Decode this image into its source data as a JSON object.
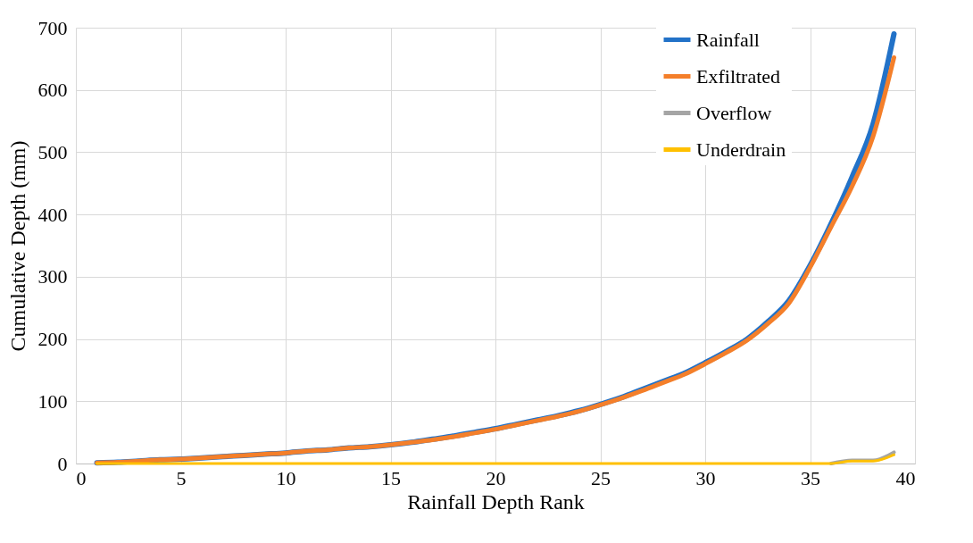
{
  "chart_data": {
    "type": "line",
    "xlabel": "Rainfall Depth Rank",
    "ylabel": "Cumulative Depth (mm)",
    "x": [
      1,
      2,
      3,
      4,
      5,
      6,
      7,
      8,
      9,
      10,
      11,
      12,
      13,
      14,
      15,
      16,
      17,
      18,
      19,
      20,
      21,
      22,
      23,
      24,
      25,
      26,
      27,
      28,
      29,
      30,
      31,
      32,
      33,
      34,
      35,
      36,
      37,
      38,
      39
    ],
    "series": [
      {
        "name": "Rainfall",
        "color": "#2272c8",
        "values": [
          1,
          2,
          4,
          6,
          7,
          9,
          11,
          13,
          15,
          17,
          20,
          22,
          25,
          27,
          30,
          34,
          39,
          44,
          50,
          56,
          63,
          70,
          77,
          85,
          95,
          106,
          119,
          132,
          145,
          162,
          180,
          200,
          228,
          262,
          318,
          385,
          460,
          545,
          690
        ]
      },
      {
        "name": "Exfiltrated",
        "color": "#f47f2a",
        "values": [
          1,
          2,
          4,
          6,
          7,
          9,
          11,
          13,
          15,
          17,
          20,
          22,
          25,
          27,
          30,
          34,
          38,
          43,
          49,
          55,
          62,
          69,
          76,
          84,
          94,
          105,
          117,
          130,
          143,
          160,
          178,
          198,
          225,
          258,
          315,
          380,
          445,
          525,
          652
        ]
      },
      {
        "name": "Overflow",
        "color": "#a5a5a5",
        "values": [
          null,
          null,
          null,
          null,
          null,
          null,
          null,
          null,
          null,
          null,
          null,
          null,
          null,
          null,
          null,
          null,
          null,
          null,
          null,
          null,
          null,
          null,
          null,
          null,
          null,
          null,
          null,
          null,
          null,
          null,
          null,
          null,
          null,
          null,
          null,
          0,
          5,
          5,
          18
        ]
      },
      {
        "name": "Underdrain",
        "color": "#ffc000",
        "values": [
          0,
          0,
          0,
          0,
          0,
          0,
          0,
          0,
          0,
          0,
          0,
          0,
          0,
          0,
          0,
          0,
          0,
          0,
          0,
          0,
          0,
          0,
          0,
          0,
          0,
          0,
          0,
          0,
          0,
          0,
          0,
          0,
          0,
          0,
          0,
          0,
          4,
          4,
          14
        ]
      }
    ],
    "xlim": [
      0,
      40
    ],
    "xticks": [
      0,
      5,
      10,
      15,
      20,
      25,
      30,
      35,
      40
    ],
    "ylim": [
      0,
      700
    ],
    "yticks": [
      0,
      100,
      200,
      300,
      400,
      500,
      600,
      700
    ],
    "grid": true,
    "legend": "top right",
    "marker": "none",
    "line_style": "solid"
  }
}
